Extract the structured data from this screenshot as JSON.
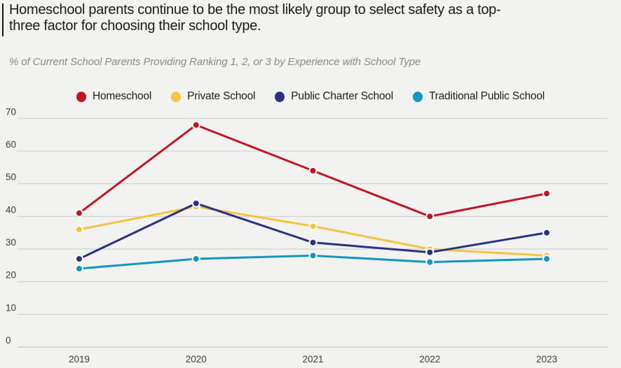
{
  "header": {
    "title_line1": "Homeschool parents continue to be the most likely group to select safety as a top-",
    "title_line2": "three factor for choosing their school type.",
    "subtitle": "% of Current School Parents Providing Ranking 1, 2, or 3 by Experience with School Type"
  },
  "colors": {
    "background": "#f2f2f1",
    "gridline": "#cbcac9",
    "axis_line": "#bdbcbb",
    "title_text": "#1a1a1a",
    "subtitle_text": "#8c8b8a",
    "tick_text": "#3c3c3c",
    "accent_bar": "#161616",
    "marker_halo": "#ffffff"
  },
  "chart_data": {
    "type": "line",
    "title": "Homeschool parents continue to be the most likely group to select safety as a top-three factor for choosing their school type.",
    "subtitle": "% of Current School Parents Providing Ranking 1, 2, or 3 by Experience with School Type",
    "categories": [
      "2019",
      "2020",
      "2021",
      "2022",
      "2023"
    ],
    "series": [
      {
        "name": "Homeschool",
        "color": "#c01622",
        "values": [
          41,
          68,
          54,
          40,
          47
        ]
      },
      {
        "name": "Private School",
        "color": "#f5c33e",
        "values": [
          36,
          43,
          37,
          30,
          28
        ]
      },
      {
        "name": "Public Charter School",
        "color": "#2b3280",
        "values": [
          27,
          44,
          32,
          29,
          35
        ]
      },
      {
        "name": "Traditional Public School",
        "color": "#0f97bf",
        "values": [
          24,
          27,
          28,
          26,
          27
        ]
      }
    ],
    "xlabel": "",
    "ylabel": "",
    "ylim": [
      0,
      70
    ],
    "ytick_step": 10,
    "grid": true,
    "legend_position": "top",
    "marker": "circle"
  }
}
